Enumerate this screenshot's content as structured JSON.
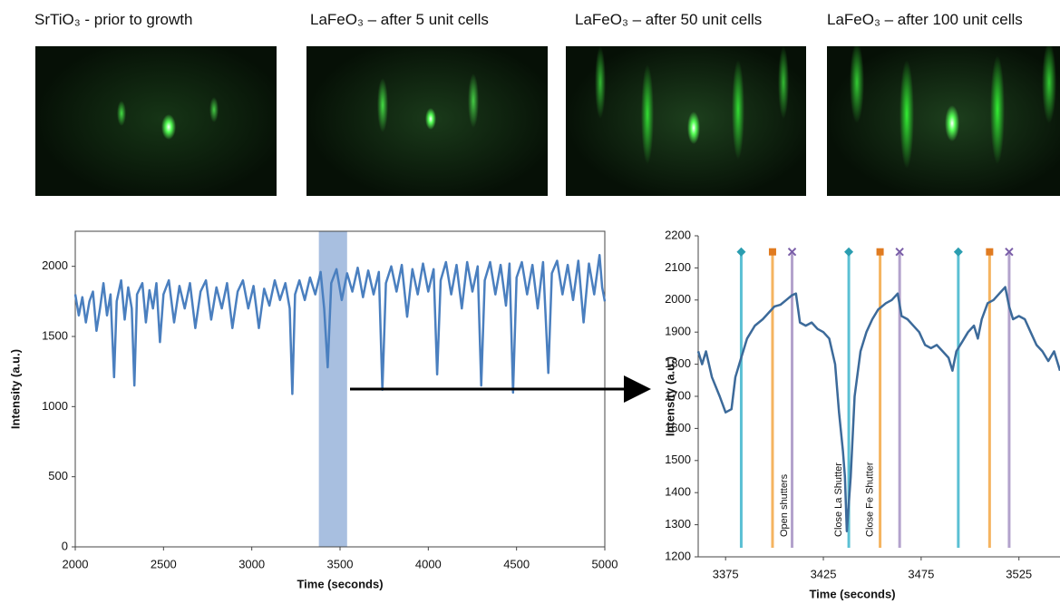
{
  "images": [
    {
      "label": "SrTiO₃ - prior to growth"
    },
    {
      "label": "LaFeO₃ – after 5 unit cells"
    },
    {
      "label": "LaFeO₃ – after 50 unit cells"
    },
    {
      "label": "LaFeO₃ – after 100 unit cells"
    }
  ],
  "chart_data": [
    {
      "type": "line",
      "xlabel": "Time (seconds)",
      "ylabel": "Intensity (a.u.)",
      "xlim": [
        2000,
        5000
      ],
      "ylim": [
        0,
        2250
      ],
      "xticks": [
        2000,
        2500,
        3000,
        3500,
        4000,
        4500,
        5000
      ],
      "yticks": [
        0,
        500,
        1000,
        1500,
        2000
      ],
      "highlight": [
        3380,
        3540
      ],
      "highlight_color": "#a8bfe0",
      "series": [
        {
          "color": "#4a7fbf",
          "x": [
            2000,
            2020,
            2040,
            2060,
            2080,
            2100,
            2120,
            2140,
            2160,
            2180,
            2200,
            2220,
            2235,
            2260,
            2280,
            2300,
            2320,
            2335,
            2350,
            2380,
            2400,
            2420,
            2440,
            2460,
            2480,
            2500,
            2530,
            2560,
            2590,
            2620,
            2650,
            2680,
            2710,
            2740,
            2770,
            2800,
            2830,
            2860,
            2890,
            2920,
            2950,
            2980,
            3010,
            3040,
            3070,
            3100,
            3130,
            3160,
            3190,
            3215,
            3230,
            3245,
            3270,
            3300,
            3330,
            3360,
            3390,
            3410,
            3430,
            3450,
            3480,
            3510,
            3540,
            3570,
            3600,
            3630,
            3660,
            3690,
            3720,
            3740,
            3760,
            3790,
            3820,
            3850,
            3880,
            3910,
            3940,
            3970,
            4000,
            4030,
            4050,
            4070,
            4100,
            4130,
            4160,
            4190,
            4220,
            4250,
            4280,
            4300,
            4320,
            4350,
            4380,
            4410,
            4440,
            4460,
            4480,
            4500,
            4530,
            4560,
            4590,
            4620,
            4650,
            4680,
            4700,
            4730,
            4760,
            4790,
            4820,
            4850,
            4880,
            4910,
            4940,
            4970,
            4985,
            5000
          ],
          "values": [
            1800,
            1650,
            1780,
            1600,
            1750,
            1820,
            1540,
            1700,
            1880,
            1650,
            1800,
            1210,
            1750,
            1900,
            1620,
            1850,
            1700,
            1150,
            1800,
            1880,
            1600,
            1830,
            1700,
            1880,
            1460,
            1800,
            1900,
            1600,
            1860,
            1700,
            1880,
            1560,
            1820,
            1900,
            1620,
            1850,
            1700,
            1880,
            1560,
            1820,
            1900,
            1700,
            1860,
            1560,
            1840,
            1720,
            1900,
            1760,
            1880,
            1700,
            1090,
            1800,
            1900,
            1760,
            1920,
            1800,
            1960,
            1700,
            1280,
            1880,
            1980,
            1760,
            1950,
            1820,
            1990,
            1780,
            1970,
            1800,
            1960,
            1120,
            1880,
            2000,
            1820,
            2010,
            1640,
            1980,
            1800,
            2020,
            1820,
            1980,
            1230,
            1900,
            2030,
            1800,
            2010,
            1700,
            2030,
            1820,
            2000,
            1150,
            1900,
            2030,
            1800,
            2010,
            1720,
            2020,
            1100,
            1920,
            2030,
            1800,
            2010,
            1700,
            2030,
            1240,
            1950,
            2040,
            1800,
            2010,
            1760,
            2040,
            1600,
            2020,
            1800,
            2080,
            1850,
            1750
          ]
        }
      ]
    },
    {
      "type": "line",
      "xlabel": "Time (seconds)",
      "ylabel": "Intensity (a.u.)",
      "xlim": [
        3361,
        3546
      ],
      "ylim": [
        1200,
        2200
      ],
      "xticks": [
        3375,
        3425,
        3475,
        3525
      ],
      "yticks": [
        1200,
        1300,
        1400,
        1500,
        1600,
        1700,
        1800,
        1900,
        2000,
        2100,
        2200
      ],
      "marker_y": 2150,
      "vlines": [
        {
          "color": "#5bc0d4",
          "marker": "diamond",
          "x": [
            3383,
            3438,
            3494
          ]
        },
        {
          "color": "#f5b460",
          "marker": "square",
          "x": [
            3399,
            3454,
            3510
          ]
        },
        {
          "color": "#b3a2cc",
          "marker": "cross",
          "x": [
            3409,
            3464,
            3520
          ]
        }
      ],
      "annotations": [
        {
          "text": "Open shutters",
          "x": 3405
        },
        {
          "text": "Close La  Shutter",
          "x": 3433
        },
        {
          "text": "Close Fe Shutter",
          "x": 3449
        }
      ],
      "series": [
        {
          "color": "#3c6a9a",
          "x": [
            3361,
            3363,
            3365,
            3368,
            3372,
            3375,
            3378,
            3380,
            3383,
            3386,
            3390,
            3394,
            3397,
            3400,
            3403,
            3406,
            3409,
            3411,
            3413,
            3416,
            3419,
            3422,
            3425,
            3428,
            3431,
            3433,
            3435,
            3436,
            3437,
            3439,
            3441,
            3444,
            3447,
            3450,
            3453,
            3457,
            3460,
            3463,
            3465,
            3468,
            3471,
            3474,
            3477,
            3480,
            3483,
            3486,
            3489,
            3491,
            3493,
            3496,
            3499,
            3502,
            3504,
            3506,
            3509,
            3512,
            3515,
            3518,
            3520,
            3522,
            3525,
            3528,
            3531,
            3534,
            3537,
            3540,
            3543,
            3546
          ],
          "values": [
            1840,
            1800,
            1840,
            1760,
            1700,
            1650,
            1660,
            1760,
            1820,
            1880,
            1920,
            1940,
            1960,
            1980,
            1985,
            2000,
            2015,
            2020,
            1930,
            1920,
            1930,
            1910,
            1900,
            1880,
            1800,
            1650,
            1530,
            1450,
            1280,
            1450,
            1700,
            1840,
            1900,
            1940,
            1970,
            1990,
            2000,
            2020,
            1950,
            1940,
            1920,
            1900,
            1860,
            1850,
            1860,
            1840,
            1820,
            1780,
            1840,
            1870,
            1900,
            1920,
            1880,
            1940,
            1990,
            2000,
            2020,
            2040,
            1980,
            1940,
            1950,
            1940,
            1900,
            1860,
            1840,
            1810,
            1840,
            1780
          ]
        }
      ]
    }
  ]
}
